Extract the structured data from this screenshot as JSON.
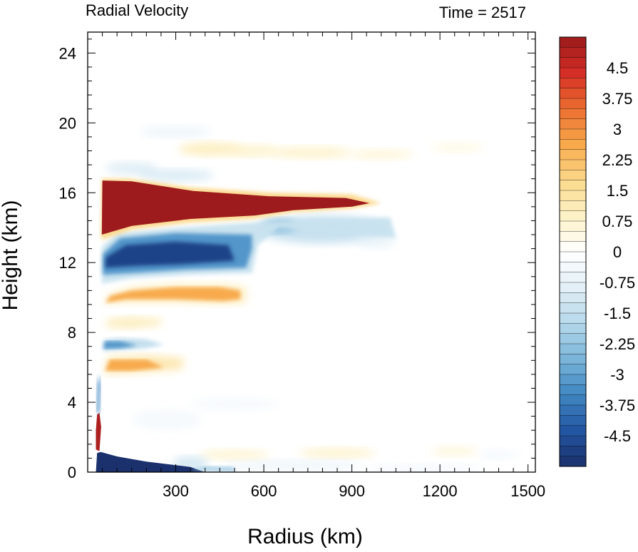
{
  "chart_data": {
    "type": "heatmap",
    "title": "Radial Velocity",
    "subtitle": "Time = 2517",
    "xlabel": "Radius (km)",
    "ylabel": "Height (km)",
    "xlim": [
      0,
      1525
    ],
    "ylim": [
      0,
      25.2
    ],
    "xticks": [
      300,
      600,
      900,
      1200,
      1500
    ],
    "yticks": [
      0,
      4,
      8,
      12,
      16,
      20,
      24
    ],
    "colorbar": {
      "min": -5.25,
      "max": 5.25,
      "step": 0.25,
      "labels": [
        "4.5",
        "3.75",
        "3",
        "2.25",
        "1.5",
        "0.75",
        "0",
        "-0.75",
        "-1.5",
        "-2.25",
        "-3",
        "-3.75",
        "-4.5"
      ],
      "label_values": [
        4.5,
        3.75,
        3,
        2.25,
        1.5,
        0.75,
        0,
        -0.75,
        -1.5,
        -2.25,
        -3,
        -3.75,
        -4.5
      ],
      "stops": [
        "#1b2f6b",
        "#2356a2",
        "#3f86c2",
        "#7ab5d9",
        "#b6d8ea",
        "#e3f0f7",
        "#ffffff",
        "#fdf2c7",
        "#fbd98a",
        "#f8a94c",
        "#ec6e30",
        "#d52e26",
        "#9b1a1c"
      ]
    },
    "features": [
      {
        "name": "upper outflow",
        "r": [
          45,
          1000
        ],
        "z": [
          13.2,
          16.8
        ],
        "value": 5.2
      },
      {
        "name": "upper inflow",
        "r": [
          50,
          1050
        ],
        "z": [
          10.8,
          14.8
        ],
        "value": -4.6
      },
      {
        "name": "mid outflow band",
        "r": [
          55,
          540
        ],
        "z": [
          9.6,
          10.8
        ],
        "value": 3.0
      },
      {
        "name": "mid inflow band",
        "r": [
          55,
          300
        ],
        "z": [
          7.0,
          7.6
        ],
        "value": -3.0
      },
      {
        "name": "lower outflow band",
        "r": [
          60,
          330
        ],
        "z": [
          5.7,
          6.6
        ],
        "value": 2.6
      },
      {
        "name": "boundary layer inflow",
        "r": [
          30,
          400
        ],
        "z": [
          0,
          1.1
        ],
        "value": -5.2
      },
      {
        "name": "eyewall low outflow",
        "r": [
          28,
          45
        ],
        "z": [
          1.2,
          3.3
        ],
        "value": 5.0
      },
      {
        "name": "upper weak outflow",
        "r": [
          300,
          1360
        ],
        "z": [
          17.6,
          19.0
        ],
        "value": 1.0
      }
    ]
  }
}
